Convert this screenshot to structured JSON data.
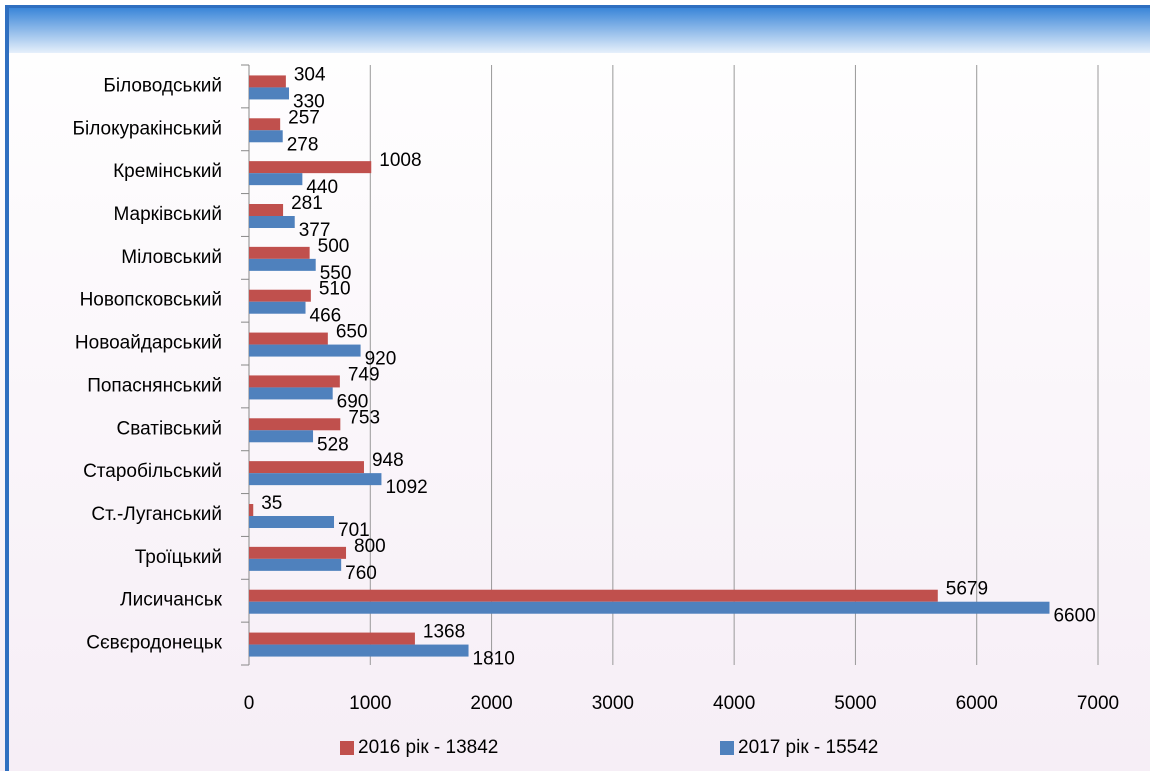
{
  "chart_data": {
    "type": "hbar",
    "categories": [
      "Біловодський",
      "Білокуракінський",
      "Кремінський",
      "Марківський",
      "Міловський",
      "Новопсковський",
      "Новоайдарський",
      "Попаснянський",
      "Сватівський",
      "Старобільський",
      "Ст.-Луганський",
      "Троїцький",
      "Лисичанськ",
      "Сєвєродонецьк"
    ],
    "series": [
      {
        "name": "2016 рік - 13842",
        "color": "#c0504d",
        "values": [
          304,
          257,
          1008,
          281,
          500,
          510,
          650,
          749,
          753,
          948,
          35,
          800,
          5679,
          1368
        ]
      },
      {
        "name": "2017 рік - 15542",
        "color": "#4f81bd",
        "values": [
          330,
          278,
          440,
          377,
          550,
          466,
          920,
          690,
          528,
          1092,
          701,
          760,
          6600,
          1810
        ]
      }
    ],
    "xlim": [
      0,
      7000
    ],
    "xticks": [
      0,
      1000,
      2000,
      3000,
      4000,
      5000,
      6000,
      7000
    ],
    "grid": true,
    "legend": "bottom"
  }
}
